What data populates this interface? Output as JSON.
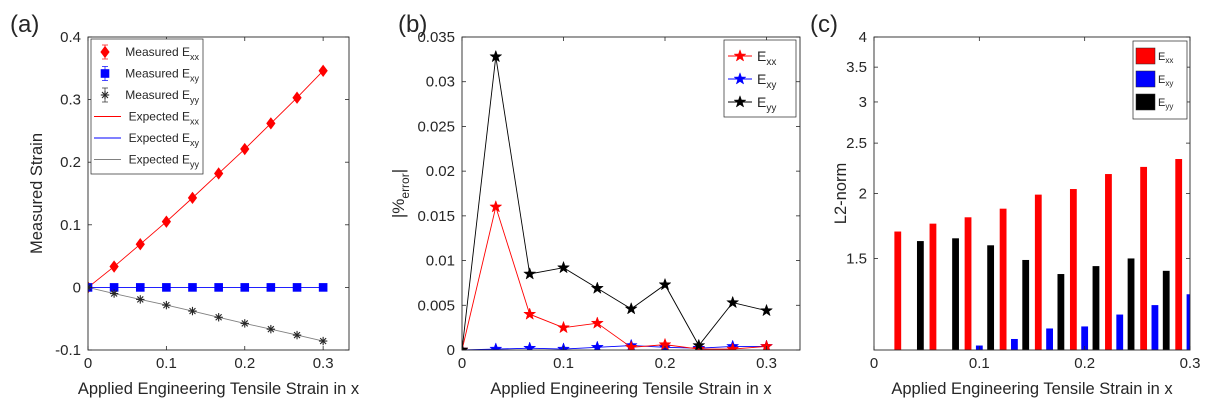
{
  "chart_data": [
    {
      "panel_label": "(a)",
      "type": "line",
      "xlabel": "Applied Engineering Tensile Strain in x",
      "ylabel": "Measured Strain",
      "xlim": [
        0,
        0.333
      ],
      "ylim": [
        -0.1,
        0.4
      ],
      "xticks": [
        0,
        0.1,
        0.2,
        0.3
      ],
      "xtick_labels": [
        "0",
        "0.1",
        "0.2",
        "0.3"
      ],
      "yticks": [
        -0.1,
        0,
        0.1,
        0.2,
        0.3,
        0.4
      ],
      "ytick_labels": [
        "-0.1",
        "0",
        "0.1",
        "0.2",
        "0.3",
        "0.4"
      ],
      "legend_position": "top-left",
      "x": [
        0,
        0.0333,
        0.0667,
        0.1,
        0.1333,
        0.1667,
        0.2,
        0.2333,
        0.2667,
        0.3
      ],
      "series": [
        {
          "name": "Measured E",
          "sub": "xx",
          "style": "marker",
          "marker": "diamond",
          "color": "#ff0000",
          "values": [
            0,
            0.0333,
            0.069,
            0.105,
            0.143,
            0.182,
            0.221,
            0.262,
            0.303,
            0.346
          ]
        },
        {
          "name": "Measured E",
          "sub": "xy",
          "style": "marker",
          "marker": "square",
          "color": "#0000ff",
          "values": [
            0,
            0,
            0,
            0,
            0,
            0,
            0,
            0,
            0,
            0
          ]
        },
        {
          "name": "Measured E",
          "sub": "yy",
          "style": "marker",
          "marker": "asterisk",
          "color": "#262626",
          "values": [
            0,
            -0.0098,
            -0.0192,
            -0.0283,
            -0.0378,
            -0.0477,
            -0.0575,
            -0.0667,
            -0.0762,
            -0.0857
          ]
        },
        {
          "name": "Expected E",
          "sub": "xx",
          "style": "line",
          "color": "#ff0000",
          "values": [
            0,
            0.0333,
            0.069,
            0.105,
            0.143,
            0.182,
            0.221,
            0.262,
            0.303,
            0.346
          ]
        },
        {
          "name": "Expected E",
          "sub": "xy",
          "style": "line",
          "color": "#0000ff",
          "values": [
            0,
            0,
            0,
            0,
            0,
            0,
            0,
            0,
            0,
            0
          ]
        },
        {
          "name": "Expected E",
          "sub": "yy",
          "style": "line",
          "color": "#808080",
          "values": [
            0,
            -0.0098,
            -0.0192,
            -0.0283,
            -0.0378,
            -0.0477,
            -0.0575,
            -0.0667,
            -0.0762,
            -0.0857
          ]
        }
      ]
    },
    {
      "panel_label": "(b)",
      "type": "line",
      "xlabel": "Applied Engineering Tensile Strain in x",
      "ylabel": "|%",
      "ylabel_sub": "error",
      "ylabel_end": "|",
      "xlim": [
        0,
        0.333
      ],
      "ylim": [
        0,
        0.035
      ],
      "xticks": [
        0,
        0.1,
        0.2,
        0.3
      ],
      "xtick_labels": [
        "0",
        "0.1",
        "0.2",
        "0.3"
      ],
      "yticks": [
        0,
        0.005,
        0.01,
        0.015,
        0.02,
        0.025,
        0.03,
        0.035
      ],
      "ytick_labels": [
        "0",
        "0.005",
        "0.01",
        "0.015",
        "0.02",
        "0.025",
        "0.03",
        "0.035"
      ],
      "legend_position": "top-right",
      "x": [
        0,
        0.0333,
        0.0667,
        0.1,
        0.1333,
        0.1667,
        0.2,
        0.2333,
        0.2667,
        0.3
      ],
      "series": [
        {
          "name": "E",
          "sub": "xx",
          "color": "#ff0000",
          "values": [
            0,
            0.016,
            0.004,
            0.0025,
            0.003,
            0.0003,
            0.0006,
            0.0001,
            0.0001,
            0.0004
          ]
        },
        {
          "name": "E",
          "sub": "xy",
          "color": "#0000ff",
          "values": [
            0,
            0.0001,
            0.0002,
            0.0001,
            0.0003,
            0.0005,
            0.0003,
            0.0002,
            0.0004,
            0.0004
          ]
        },
        {
          "name": "E",
          "sub": "yy",
          "color": "#000000",
          "values": [
            0,
            0.0328,
            0.0085,
            0.0092,
            0.0069,
            0.0046,
            0.0073,
            0.0005,
            0.0053,
            0.0044
          ]
        }
      ]
    },
    {
      "panel_label": "(c)",
      "type": "bar",
      "xlabel": "Applied Engineering Tensile Strain in x",
      "ylabel": "L2-norm",
      "y_scale": "log",
      "xlim": [
        0,
        0.3
      ],
      "ylim": [
        1,
        4
      ],
      "xticks": [
        0,
        0.1,
        0.2,
        0.3
      ],
      "xtick_labels": [
        "0",
        "0.1",
        "0.2",
        "0.3"
      ],
      "yticks": [
        1.5,
        2,
        2.5,
        3,
        3.5,
        4
      ],
      "ytick_labels": [
        "1.5",
        "2",
        "2.5",
        "3",
        "3.5",
        "4"
      ],
      "legend_position": "top-right",
      "x": [
        0.0333,
        0.0667,
        0.1,
        0.1333,
        0.1667,
        0.2,
        0.2333,
        0.2667,
        0.3
      ],
      "series": [
        {
          "name": "E",
          "sub": "xx",
          "color": "#ff0000",
          "values": [
            1.69,
            1.75,
            1.8,
            1.87,
            1.99,
            2.04,
            2.18,
            2.25,
            2.33
          ]
        },
        {
          "name": "E",
          "sub": "xy",
          "color": "#0000ff",
          "values": [
            null,
            null,
            1.02,
            1.05,
            1.1,
            1.11,
            1.17,
            1.22,
            1.28
          ]
        },
        {
          "name": "E",
          "sub": "yy",
          "color": "#000000",
          "values": [
            1.62,
            1.64,
            1.59,
            1.49,
            1.4,
            1.45,
            1.5,
            1.42,
            null
          ]
        }
      ]
    }
  ]
}
